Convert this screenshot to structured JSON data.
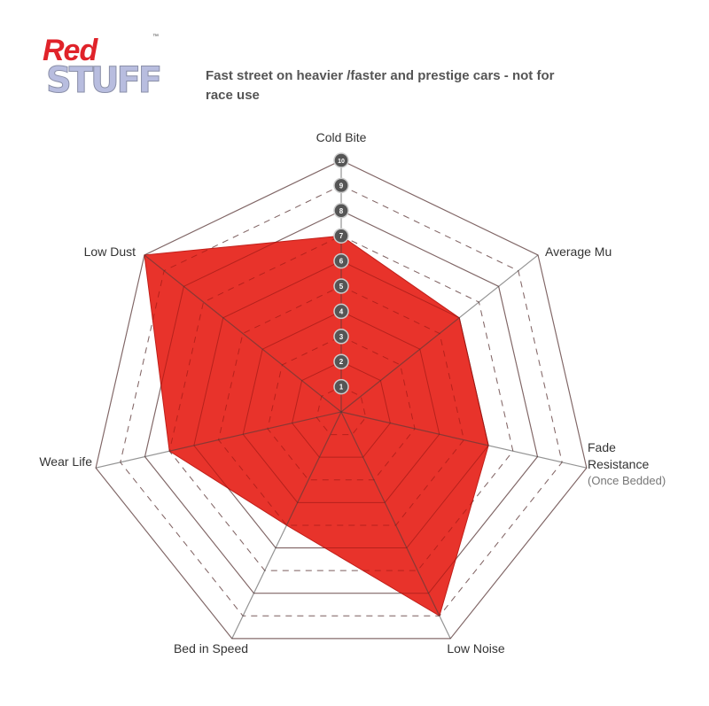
{
  "logo": {
    "line1": "Red",
    "line2": "STUFF",
    "tm": "™"
  },
  "subtitle": "Fast street on heavier /faster and prestige cars - not for race use",
  "chart_data": {
    "type": "radar",
    "title": "",
    "axes": [
      "Cold Bite",
      "Average Mu",
      "Fade Resistance",
      "Low Noise",
      "Bed in Speed",
      "Wear Life",
      "Low Dust"
    ],
    "axis_note": {
      "Fade Resistance": "(Once Bedded)"
    },
    "values": [
      7,
      6,
      6,
      9,
      5,
      7,
      10
    ],
    "range": [
      0,
      10
    ],
    "scale_ticks": [
      "1",
      "2",
      "3",
      "4",
      "5",
      "6",
      "7",
      "8",
      "9",
      "10"
    ],
    "fill_color": "#e8332b",
    "grid": true
  }
}
